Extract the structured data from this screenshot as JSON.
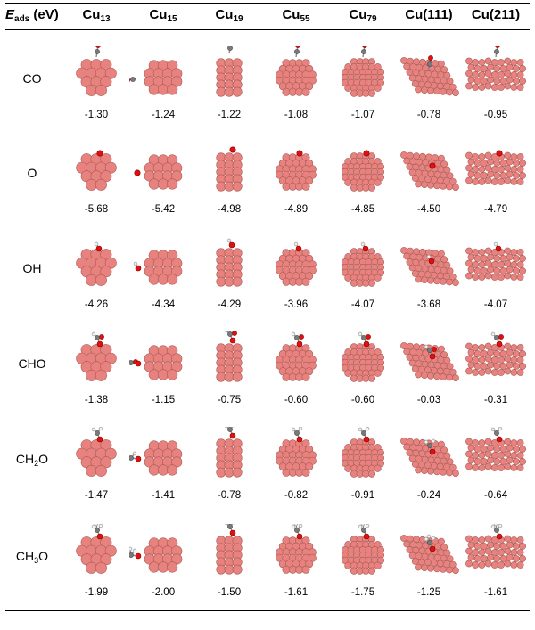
{
  "header": {
    "energy_label": {
      "symbol": "E",
      "sub": "ads",
      "unit": " (eV)"
    },
    "columns": [
      {
        "main": "Cu",
        "sub": "13"
      },
      {
        "main": "Cu",
        "sub": "15"
      },
      {
        "main": "Cu",
        "sub": "19"
      },
      {
        "main": "Cu",
        "sub": "55"
      },
      {
        "main": "Cu",
        "sub": "79"
      },
      {
        "main": "Cu(111)",
        "sub": ""
      },
      {
        "main": "Cu(211)",
        "sub": ""
      }
    ]
  },
  "rows": [
    {
      "label": "CO",
      "label_sub": "",
      "adsorbate": "CO",
      "values": [
        "-1.30",
        "-1.24",
        "-1.22",
        "-1.08",
        "-1.07",
        "-0.78",
        "-0.95"
      ]
    },
    {
      "label": "O",
      "label_sub": "",
      "adsorbate": "O",
      "values": [
        "-5.68",
        "-5.42",
        "-4.98",
        "-4.89",
        "-4.85",
        "-4.50",
        "-4.79"
      ]
    },
    {
      "label": "OH",
      "label_sub": "",
      "adsorbate": "OH",
      "values": [
        "-4.26",
        "-4.34",
        "-4.29",
        "-3.96",
        "-4.07",
        "-3.68",
        "-4.07"
      ]
    },
    {
      "label": "CHO",
      "label_sub": "",
      "adsorbate": "CHO",
      "values": [
        "-1.38",
        "-1.15",
        "-0.75",
        "-0.60",
        "-0.60",
        "-0.03",
        "-0.31"
      ]
    },
    {
      "label": "CH",
      "label_sub": "2",
      "label_tail": "O",
      "adsorbate": "CH2O",
      "values": [
        "-1.47",
        "-1.41",
        "-0.78",
        "-0.82",
        "-0.91",
        "-0.24",
        "-0.64"
      ]
    },
    {
      "label": "CH",
      "label_sub": "3",
      "label_tail": "O",
      "adsorbate": "CH3O",
      "values": [
        "-1.99",
        "-2.00",
        "-1.50",
        "-1.61",
        "-1.75",
        "-1.25",
        "-1.61"
      ]
    }
  ],
  "colors": {
    "copper": "#e8827e",
    "copper_dark": "#a85a57",
    "oxygen": "#e01010",
    "carbon": "#7a7a7a",
    "hydrogen": "#f2f2f2"
  }
}
